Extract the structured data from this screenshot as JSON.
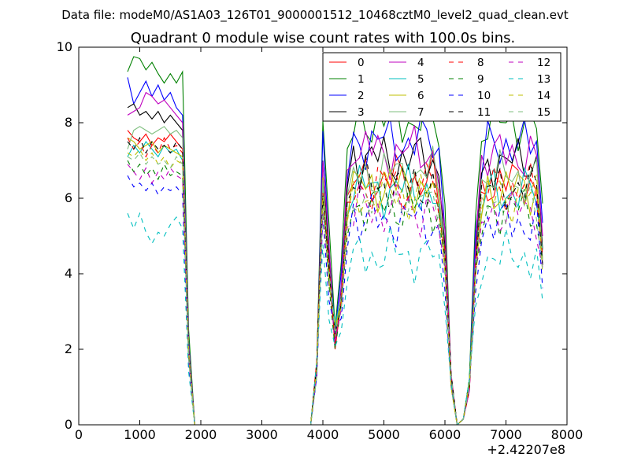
{
  "chart_data": {
    "type": "line",
    "suptitle": "Data file: modeM0/AS1A03_126T01_9000001512_10468cztM0_level2_quad_clean.evt",
    "title": "Quadrant 0 module wise count rates with 100.0s bins.",
    "xlabel": "",
    "ylabel": "",
    "x_offset_label": "+2.42207e8",
    "xlim": [
      0,
      8000
    ],
    "ylim": [
      0,
      10
    ],
    "x_ticks": [
      0,
      1000,
      2000,
      3000,
      4000,
      5000,
      6000,
      7000,
      8000
    ],
    "y_ticks": [
      0,
      2,
      4,
      6,
      8,
      10
    ],
    "x_tick_labels": [
      "0",
      "1000",
      "2000",
      "3000",
      "4000",
      "5000",
      "6000",
      "7000",
      "8000"
    ],
    "y_tick_labels": [
      "0",
      "2",
      "4",
      "6",
      "8",
      "10"
    ],
    "grid": false,
    "legend_placement": "top-right",
    "legend_columns": 4,
    "x": [
      800,
      900,
      1000,
      1100,
      1200,
      1300,
      1400,
      1500,
      1600,
      1700,
      1800,
      1900,
      2000,
      2100,
      2200,
      2300,
      2400,
      2500,
      2600,
      2700,
      2800,
      2900,
      3000,
      3100,
      3200,
      3300,
      3400,
      3500,
      3600,
      3700,
      3800,
      3900,
      4000,
      4100,
      4200,
      4300,
      4400,
      4500,
      4600,
      4700,
      4800,
      4900,
      5000,
      5100,
      5200,
      5300,
      5400,
      5500,
      5600,
      5700,
      5800,
      5900,
      6000,
      6100,
      6200,
      6300,
      6400,
      6500,
      6600,
      6700,
      6800,
      6900,
      7000,
      7100,
      7200,
      7300,
      7400,
      7500,
      7600
    ],
    "series": [
      {
        "name": "0",
        "color": "#ff0000",
        "dash": false,
        "base": [
          7.8,
          7.6,
          7.5,
          7.7,
          7.4,
          7.6,
          7.5,
          7.7,
          7.5,
          7.3
        ]
      },
      {
        "name": "1",
        "color": "#008000",
        "dash": false,
        "base": [
          9.35,
          9.75,
          9.7,
          9.4,
          9.6,
          9.3,
          9.05,
          9.3,
          9.05,
          9.35
        ]
      },
      {
        "name": "2",
        "color": "#0000ff",
        "dash": false,
        "base": [
          9.2,
          8.5,
          8.8,
          9.1,
          8.7,
          9.0,
          8.6,
          8.8,
          8.4,
          8.2
        ]
      },
      {
        "name": "3",
        "color": "#000000",
        "dash": false,
        "base": [
          8.4,
          8.5,
          8.2,
          8.3,
          8.1,
          8.3,
          8.0,
          8.2,
          8.0,
          7.8
        ]
      },
      {
        "name": "4",
        "color": "#bf00bf",
        "dash": false,
        "base": [
          8.2,
          8.3,
          8.4,
          8.8,
          8.7,
          8.5,
          8.6,
          8.4,
          8.2,
          8.0
        ]
      },
      {
        "name": "5",
        "color": "#00bfbf",
        "dash": false,
        "base": [
          7.1,
          7.4,
          7.2,
          7.5,
          7.3,
          7.1,
          7.4,
          7.2,
          7.3,
          7.0
        ]
      },
      {
        "name": "6",
        "color": "#bfbf00",
        "dash": false,
        "base": [
          7.6,
          7.5,
          7.3,
          7.4,
          7.5,
          7.2,
          7.4,
          7.3,
          7.2,
          7.1
        ]
      },
      {
        "name": "7",
        "color": "#7fbf7f",
        "dash": false,
        "base": [
          7.3,
          7.8,
          7.9,
          7.8,
          7.7,
          7.8,
          7.9,
          7.7,
          7.8,
          7.6
        ]
      },
      {
        "name": "8",
        "color": "#ff0000",
        "dash": true,
        "base": [
          7.6,
          7.3,
          7.5,
          7.1,
          7.4,
          7.2,
          7.6,
          7.3,
          7.4,
          7.2
        ]
      },
      {
        "name": "9",
        "color": "#008000",
        "dash": true,
        "base": [
          7.0,
          6.7,
          6.9,
          6.6,
          6.8,
          6.5,
          6.9,
          6.6,
          6.7,
          6.6
        ]
      },
      {
        "name": "10",
        "color": "#0000ff",
        "dash": true,
        "base": [
          6.6,
          6.3,
          6.4,
          6.2,
          6.4,
          6.1,
          6.3,
          6.2,
          6.3,
          6.1
        ]
      },
      {
        "name": "11",
        "color": "#000000",
        "dash": true,
        "base": [
          7.5,
          7.3,
          7.6,
          7.2,
          7.5,
          7.3,
          7.4,
          7.2,
          7.5,
          7.3
        ]
      },
      {
        "name": "12",
        "color": "#bf00bf",
        "dash": true,
        "base": [
          6.9,
          6.7,
          6.5,
          6.8,
          6.4,
          6.7,
          6.5,
          6.8,
          6.6,
          6.5
        ]
      },
      {
        "name": "13",
        "color": "#00bfbf",
        "dash": true,
        "base": [
          5.6,
          5.2,
          5.6,
          5.1,
          4.8,
          5.1,
          5.0,
          5.3,
          5.5,
          5.2
        ]
      },
      {
        "name": "14",
        "color": "#bfbf00",
        "dash": true,
        "base": [
          7.2,
          7.1,
          7.3,
          7.0,
          7.2,
          6.9,
          7.1,
          6.8,
          7.0,
          6.9
        ]
      },
      {
        "name": "15",
        "color": "#7fbf7f",
        "dash": true,
        "base": [
          7.1,
          7.0,
          7.2,
          6.9,
          7.1,
          6.9,
          7.0,
          6.8,
          7.1,
          6.9
        ]
      }
    ]
  }
}
